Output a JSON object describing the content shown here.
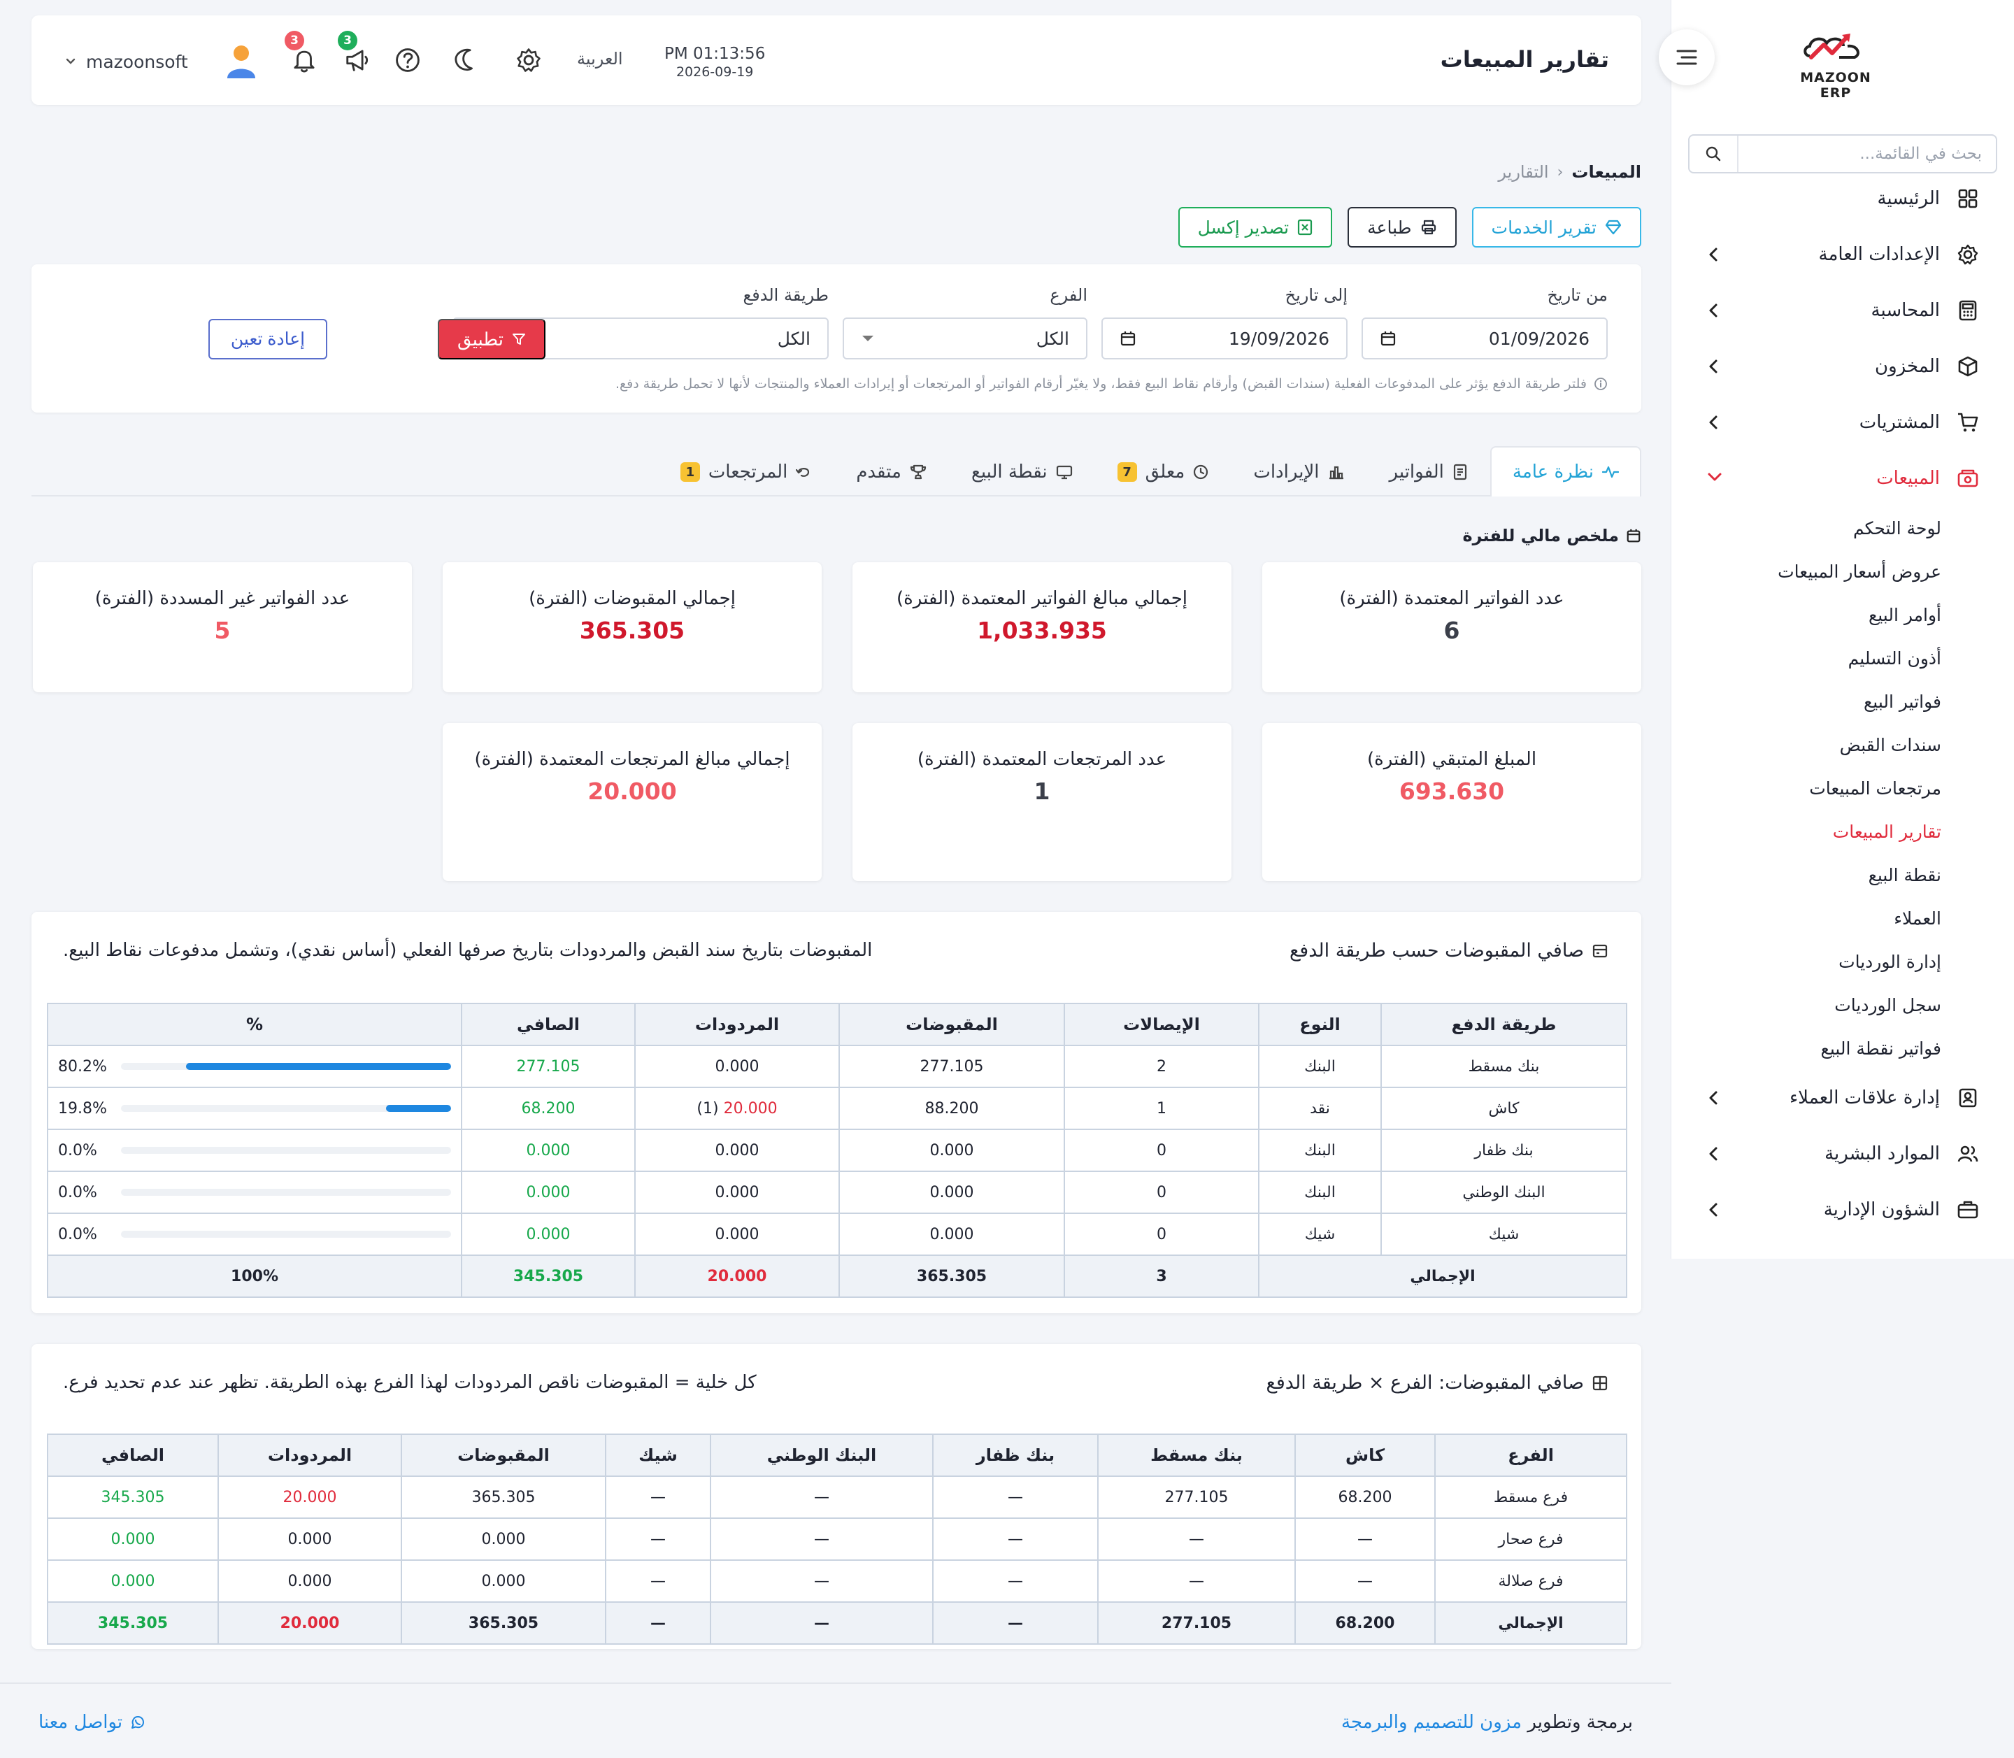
{
  "sidebar": {
    "logo_text": "MAZOON ERP",
    "search_placeholder": "بحث في القائمة...",
    "items": [
      {
        "label": "الرئيسية"
      },
      {
        "label": "الإعدادات العامة"
      },
      {
        "label": "المحاسبة"
      },
      {
        "label": "المخزون"
      },
      {
        "label": "المشتريات"
      },
      {
        "label": "المبيعات"
      }
    ],
    "sales_sub": [
      {
        "label": "لوحة التحكم"
      },
      {
        "label": "عروض أسعار المبيعات"
      },
      {
        "label": "أوامر البيع"
      },
      {
        "label": "أذون التسليم"
      },
      {
        "label": "فواتير البيع"
      },
      {
        "label": "سندات القبض"
      },
      {
        "label": "مرتجعات المبيعات"
      },
      {
        "label": "تقارير المبيعات"
      },
      {
        "label": "نقطة البيع"
      },
      {
        "label": "العملاء"
      },
      {
        "label": "إدارة الورديات"
      },
      {
        "label": "سجل الورديات"
      },
      {
        "label": "فواتير نقطة البيع"
      }
    ],
    "items_after": [
      {
        "label": "إدارة علاقات العملاء"
      },
      {
        "label": "الموارد البشرية"
      },
      {
        "label": "الشؤون الإدارية"
      }
    ]
  },
  "header": {
    "title": "تقارير المبيعات",
    "time": "PM 01:13:56",
    "date": "2026-09-19",
    "language": "العربية",
    "announcements_badge": "3",
    "notifications_badge": "3",
    "username": "mazoonsoft"
  },
  "breadcrumb": {
    "root": "المبيعات",
    "current": "التقارير"
  },
  "actions": {
    "services": "تقرير الخدمات",
    "print": "طباعة",
    "excel": "تصدير إكسل"
  },
  "filters": {
    "from_label": "من تاريخ",
    "from_value": "01/09/2026",
    "to_label": "إلى تاريخ",
    "to_value": "19/09/2026",
    "branch_label": "الفرع",
    "branch_value": "الكل",
    "payment_label": "طريقة الدفع",
    "payment_value": "الكل",
    "apply": "تطبيق",
    "reset": "إعادة تعين",
    "note": "فلتر طريقة الدفع يؤثر على المدفوعات الفعلية (سندات القبض) وأرقام نقاط البيع فقط، ولا يغيّر أرقام الفواتير أو المرتجعات أو إيرادات العملاء والمنتجات لأنها لا تحمل طريقة دفع."
  },
  "tabs": [
    {
      "label": "نظرة عامة"
    },
    {
      "label": "الفواتير"
    },
    {
      "label": "الإيرادات"
    },
    {
      "label": "معلق",
      "badge": "7"
    },
    {
      "label": "نقطة البيع"
    },
    {
      "label": "متقدم"
    },
    {
      "label": "المرتجعات",
      "badge": "1"
    }
  ],
  "summary": {
    "title": "ملخص مالي للفترة",
    "cards": [
      {
        "label": "عدد الفواتير المعتمدة (الفترة)",
        "value": "6",
        "color": "#3b3f4a"
      },
      {
        "label": "إجمالي مبالغ الفواتير المعتمدة (الفترة)",
        "value": "1,033.935",
        "color": "#d0182c"
      },
      {
        "label": "إجمالي المقبوضات (الفترة)",
        "value": "365.305",
        "color": "#d0182c"
      },
      {
        "label": "عدد الفواتير غير المسددة (الفترة)",
        "value": "5",
        "color": "#f05a64"
      },
      {
        "label": "المبلغ المتبقي (الفترة)",
        "value": "693.630",
        "color": "#f05a64"
      },
      {
        "label": "عدد المرتجعات المعتمدة (الفترة)",
        "value": "1",
        "color": "#3b3f4a"
      },
      {
        "label": "إجمالي مبالغ المرتجعات المعتمدة (الفترة)",
        "value": "20.000",
        "color": "#f05a64"
      }
    ]
  },
  "payments_panel": {
    "title": "صافي المقبوضات حسب طريقة الدفع",
    "note": "المقبوضات بتاريخ سند القبض والمردودات بتاريخ صرفها الفعلي (أساس نقدي)، وتشمل مدفوعات نقاط البيع.",
    "headers": [
      "طريقة الدفع",
      "النوع",
      "الإيصالات",
      "المقبوضات",
      "المردودات",
      "الصافي",
      "%"
    ],
    "rows": [
      {
        "method": "بنك مسقط",
        "type": "البنك",
        "receipts": "2",
        "collected": "277.105",
        "refunds": "0.000",
        "refund_count": "",
        "net": "277.105",
        "pct_text": "80.2%",
        "pct": 80.2
      },
      {
        "method": "كاش",
        "type": "نقد",
        "receipts": "1",
        "collected": "88.200",
        "refunds": "20.000",
        "refund_count": "(1)",
        "net": "68.200",
        "pct_text": "19.8%",
        "pct": 19.8
      },
      {
        "method": "بنك ظفار",
        "type": "البنك",
        "receipts": "0",
        "collected": "0.000",
        "refunds": "0.000",
        "refund_count": "",
        "net": "0.000",
        "pct_text": "0.0%",
        "pct": 0
      },
      {
        "method": "البنك الوطني",
        "type": "البنك",
        "receipts": "0",
        "collected": "0.000",
        "refunds": "0.000",
        "refund_count": "",
        "net": "0.000",
        "pct_text": "0.0%",
        "pct": 0
      },
      {
        "method": "شيك",
        "type": "شيك",
        "receipts": "0",
        "collected": "0.000",
        "refunds": "0.000",
        "refund_count": "",
        "net": "0.000",
        "pct_text": "0.0%",
        "pct": 0
      }
    ],
    "total": {
      "label": "الإجمالي",
      "receipts": "3",
      "collected": "365.305",
      "refunds": "20.000",
      "net": "345.305",
      "pct": "100%"
    }
  },
  "branch_panel": {
    "title": "صافي المقبوضات: الفرع × طريقة الدفع",
    "note": "كل خلية = المقبوضات ناقص المردودات لهذا الفرع بهذه الطريقة. تظهر عند عدم تحديد فرع.",
    "headers": [
      "الفرع",
      "كاش",
      "بنك مسقط",
      "بنك ظفار",
      "البنك الوطني",
      "شيك",
      "المقبوضات",
      "المردودات",
      "الصافي"
    ],
    "rows": [
      [
        "فرع مسقط",
        "68.200",
        "277.105",
        "—",
        "—",
        "—",
        "365.305",
        "20.000",
        "345.305"
      ],
      [
        "فرع صحار",
        "—",
        "—",
        "—",
        "—",
        "—",
        "0.000",
        "0.000",
        "0.000"
      ],
      [
        "فرع صلالة",
        "—",
        "—",
        "—",
        "—",
        "—",
        "0.000",
        "0.000",
        "0.000"
      ]
    ],
    "total": [
      "الإجمالي",
      "68.200",
      "277.105",
      "—",
      "—",
      "—",
      "365.305",
      "20.000",
      "345.305"
    ]
  },
  "footer": {
    "prefix": "برمجة وتطوير",
    "link": "مزون للتصميم والبرمجة",
    "contact": "تواصل معنا"
  }
}
